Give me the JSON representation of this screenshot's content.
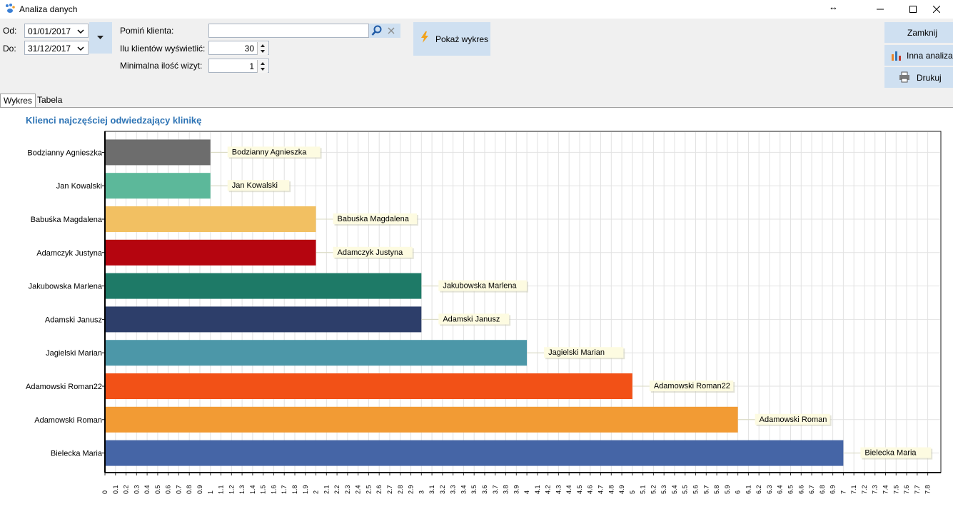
{
  "window": {
    "title": "Analiza danych",
    "icon": "paw-app-icon",
    "resize_glyph": "↔",
    "minimize_glyph": "—",
    "maximize_glyph": "☐",
    "close_glyph": "✕"
  },
  "filters": {
    "from_label": "Od:",
    "from_value": "01/01/2017",
    "to_label": "Do:",
    "to_value": "31/12/2017",
    "skip_client_label": "Pomiń klienta:",
    "skip_client_value": "",
    "clients_count_label": "Ilu klientów wyświetlić:",
    "clients_count_value": "30",
    "min_visits_label": "Minimalna ilość wizyt:",
    "min_visits_value": "1"
  },
  "buttons": {
    "show_chart": "Pokaż wykres",
    "close": "Zamknij",
    "other_analysis": "Inna analiza",
    "print": "Drukuj"
  },
  "tabs": [
    {
      "label": "Wykres",
      "active": true
    },
    {
      "label": "Tabela",
      "active": false
    }
  ],
  "chart_title": "Klienci najczęściej odwiedzający klinikę",
  "chart_data": {
    "type": "bar",
    "orientation": "horizontal",
    "title": "Klienci najczęściej odwiedzający klinikę",
    "categories": [
      "Bodzianny Agnieszka",
      "Jan Kowalski",
      "Babuśka Magdalena",
      "Adamczyk Justyna",
      "Jakubowska Marlena",
      "Adamski Janusz",
      "Jagielski Marian",
      "Adamowski Roman22",
      "Adamowski Roman",
      "Bielecka Maria"
    ],
    "values": [
      1,
      1,
      2,
      2,
      3,
      3,
      4,
      5,
      6,
      7
    ],
    "colors": [
      "#6d6d6d",
      "#5cb89a",
      "#f2c062",
      "#b5050f",
      "#1e7a67",
      "#2d3e6a",
      "#4c97a8",
      "#f25117",
      "#f29b34",
      "#4565a6"
    ],
    "data_labels": [
      "Bodzianny Agnieszka",
      "Jan Kowalski",
      "Babuśka Magdalena",
      "Adamczyk Justyna",
      "Jakubowska Marlena",
      "Adamski Janusz",
      "Jagielski Marian",
      "Adamowski Roman22",
      "Adamowski Roman",
      "Bielecka Maria"
    ],
    "xlim": [
      0,
      7.8
    ],
    "xtick_step": 0.1,
    "grid": true
  }
}
